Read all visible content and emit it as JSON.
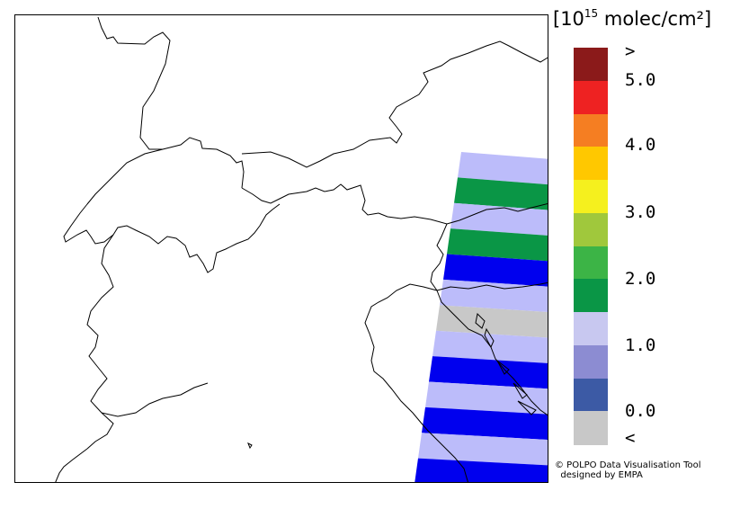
{
  "legend": {
    "unit_prefix": "[10",
    "unit_exponent": "15",
    "unit_suffix": " molec/cm²]",
    "labels": [
      ">",
      "5.0",
      "4.0",
      "3.0",
      "2.0",
      "1.0",
      "0.0",
      "<"
    ],
    "colors": [
      "#8b1a1a",
      "#ee2222",
      "#f57e22",
      "#ffc800",
      "#f5f01e",
      "#a0c83c",
      "#3cb446",
      "#0a9646",
      "#c8c8f0",
      "#8c8cd2",
      "#3c5aa5",
      "#c8c8c8"
    ]
  },
  "credit": {
    "line1": "© POLPO Data Visualisation Tool",
    "line2": "  designed by EMPA"
  },
  "map": {
    "swath_colors": {
      "light_blue": "#bcbcfa",
      "green": "#0a9646",
      "blue": "#0000ee",
      "gray": "#c8c8c8"
    },
    "swath_bands": [
      "light_blue",
      "green",
      "light_blue",
      "green",
      "blue",
      "light_blue",
      "gray",
      "light_blue",
      "blue",
      "light_blue",
      "blue",
      "light_blue",
      "blue"
    ]
  }
}
